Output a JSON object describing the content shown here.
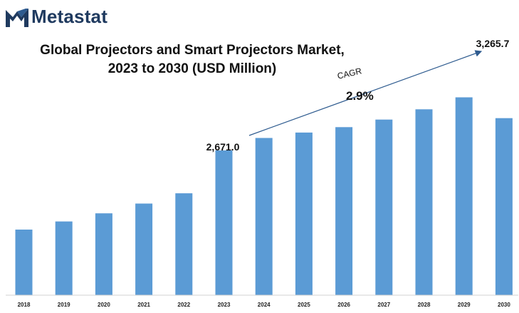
{
  "brand": {
    "name": "Metastat",
    "color": "#1f3a5f",
    "icon": "metastat-logo-icon"
  },
  "annotations": {
    "cagr_label": "CAGR",
    "cagr_value": "2.9%",
    "start_label": "2,671.0",
    "end_label": "3,265.7"
  },
  "chart_data": {
    "type": "bar",
    "title": "Global Projectors and Smart Projectors Market,",
    "subtitle": "2023 to 2030 (USD Million)",
    "xlabel": "",
    "ylabel": "",
    "categories": [
      "2018",
      "2019",
      "2020",
      "2021",
      "2022",
      "2023",
      "2024",
      "2025",
      "2026",
      "2027",
      "2028",
      "2029",
      "2030"
    ],
    "values": [
      1210,
      1360,
      1510,
      1690,
      1880,
      2671.0,
      2900,
      3000,
      3100,
      3240,
      3430,
      3650,
      3265.7
    ],
    "bar_color": "#5b9bd5",
    "ylim": [
      0,
      4420
    ],
    "grid": false,
    "legend": "none"
  }
}
